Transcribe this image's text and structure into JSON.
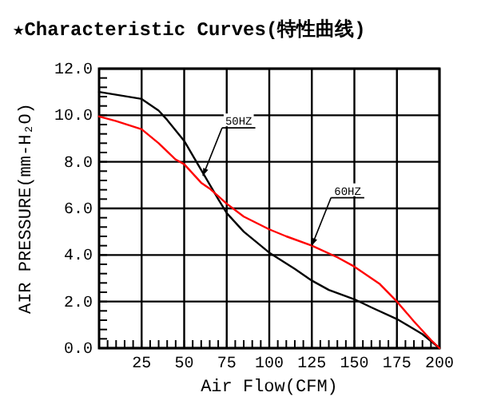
{
  "chart_data": {
    "type": "line",
    "title": "★Characteristic Curves(特性曲线)",
    "xlabel": "Air Flow(CFM)",
    "ylabel": "AIR PRESSURE(mm-H₂O)",
    "xlim": [
      0,
      200
    ],
    "xticks": [
      25,
      50,
      75,
      100,
      125,
      150,
      175,
      200
    ],
    "ylim": [
      0,
      12
    ],
    "yticks": [
      {
        "value": 0,
        "label": "0.0"
      },
      {
        "value": 2,
        "label": "2.0"
      },
      {
        "value": 4,
        "label": "4.0"
      },
      {
        "value": 6,
        "label": "6.0"
      },
      {
        "value": 8,
        "label": "8.0"
      },
      {
        "value": 10,
        "label": "10.0"
      },
      {
        "value": 12,
        "label": "12.0"
      }
    ],
    "grid": true,
    "marker": "none",
    "line_style": "solid",
    "series": [
      {
        "color": "#000000",
        "x": [
          0,
          25,
          35,
          40,
          50,
          60,
          70,
          75,
          85,
          100,
          115,
          125,
          135,
          150,
          160,
          175,
          190,
          200
        ],
        "values": [
          11.0,
          10.7,
          10.2,
          9.8,
          8.9,
          7.65,
          6.4,
          5.8,
          5.0,
          4.1,
          3.4,
          2.9,
          2.5,
          2.1,
          1.75,
          1.25,
          0.6,
          0
        ]
      },
      {
        "color": "#ff0000",
        "x": [
          0,
          10,
          25,
          35,
          45,
          50,
          60,
          65,
          75,
          85,
          100,
          110,
          125,
          140,
          150,
          165,
          175,
          185,
          195,
          200
        ],
        "values": [
          9.95,
          9.75,
          9.4,
          8.8,
          8.1,
          7.9,
          7.1,
          6.85,
          6.2,
          5.65,
          5.1,
          4.8,
          4.4,
          3.9,
          3.5,
          2.75,
          2.0,
          1.15,
          0.35,
          0
        ]
      }
    ],
    "annotations": [
      {
        "text": "50HZ",
        "x": 61,
        "y": 7.4
      },
      {
        "text": "60HZ",
        "x": 125,
        "y": 4.4
      }
    ]
  }
}
